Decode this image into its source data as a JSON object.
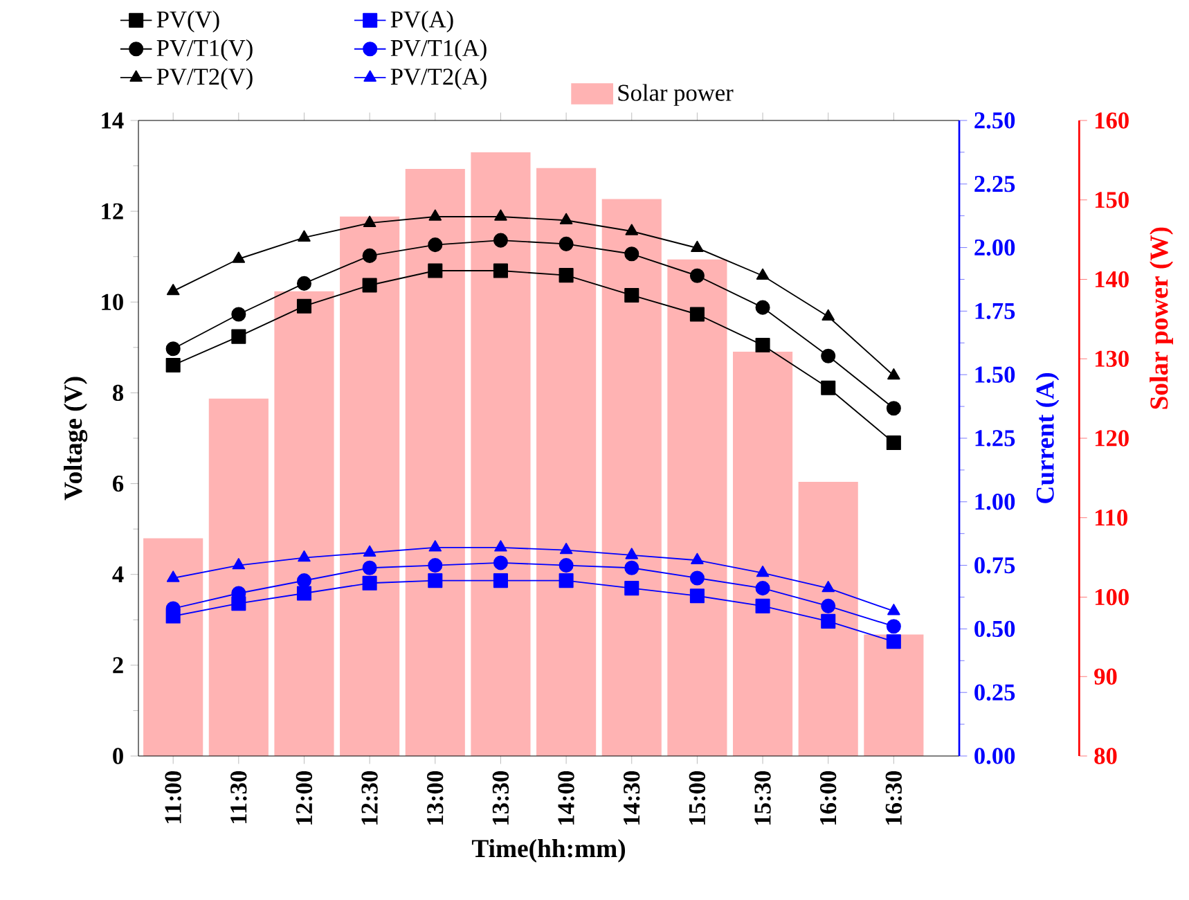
{
  "chart_data": {
    "type": "line",
    "xlabel": "Time(hh:mm)",
    "ylabel": "Voltage (V)",
    "y2label": "Current (A)",
    "y3label": "Solar power (W)",
    "categories": [
      "11:00",
      "11:30",
      "12:00",
      "12:30",
      "13:00",
      "13:30",
      "14:00",
      "14:30",
      "15:00",
      "15:30",
      "16:00",
      "16:30"
    ],
    "series": [
      {
        "name": "Solar power",
        "type": "bar",
        "axis": "y3",
        "color": "#ffb3b3",
        "values": [
          107.4,
          125.0,
          138.5,
          147.9,
          153.9,
          156.0,
          154.0,
          150.1,
          142.5,
          130.9,
          114.5,
          95.3
        ]
      },
      {
        "name": "PV(V)",
        "color": "#000000",
        "marker": "square",
        "values": [
          8.61,
          9.24,
          9.91,
          10.37,
          10.69,
          10.69,
          10.59,
          10.15,
          9.73,
          9.05,
          8.11,
          6.9
        ]
      },
      {
        "name": "PV/T1(V)",
        "color": "#000000",
        "marker": "circle",
        "values": [
          8.97,
          9.73,
          10.41,
          11.02,
          11.26,
          11.36,
          11.28,
          11.06,
          10.58,
          9.88,
          8.81,
          7.66
        ]
      },
      {
        "name": "PV/T2(V)",
        "color": "#000000",
        "marker": "triangle",
        "values": [
          10.24,
          10.95,
          11.42,
          11.74,
          11.88,
          11.88,
          11.8,
          11.56,
          11.19,
          10.58,
          9.68,
          8.38
        ]
      },
      {
        "name": "PV(A)",
        "color": "#0000ff",
        "marker": "square",
        "axis": "y2",
        "values": [
          0.55,
          0.6,
          0.64,
          0.68,
          0.69,
          0.69,
          0.69,
          0.66,
          0.63,
          0.59,
          0.53,
          0.45
        ]
      },
      {
        "name": "PV/T1(A)",
        "color": "#0000ff",
        "marker": "circle",
        "axis": "y2",
        "values": [
          0.58,
          0.64,
          0.69,
          0.74,
          0.75,
          0.76,
          0.75,
          0.74,
          0.7,
          0.66,
          0.59,
          0.51
        ]
      },
      {
        "name": "PV/T2(A)",
        "color": "#0000ff",
        "marker": "triangle",
        "axis": "y2",
        "values": [
          0.7,
          0.75,
          0.78,
          0.8,
          0.82,
          0.82,
          0.81,
          0.79,
          0.77,
          0.72,
          0.66,
          0.57
        ]
      }
    ],
    "ylim": [
      0,
      14
    ],
    "yticks": [
      0,
      2,
      4,
      6,
      8,
      10,
      12,
      14
    ],
    "y2lim": [
      0,
      2.5
    ],
    "y2ticks": [
      {
        "value": 0,
        "label": "0.00"
      },
      {
        "value": 0.25,
        "label": "0.25"
      },
      {
        "value": 0.5,
        "label": "0.50"
      },
      {
        "value": 0.75,
        "label": "0.75"
      },
      {
        "value": 1,
        "label": "1.00"
      },
      {
        "value": 1.25,
        "label": "1.25"
      },
      {
        "value": 1.5,
        "label": "1.50"
      },
      {
        "value": 1.75,
        "label": "1.75"
      },
      {
        "value": 2,
        "label": "2.00"
      },
      {
        "value": 2.25,
        "label": "2.25"
      },
      {
        "value": 2.5,
        "label": "2.50"
      }
    ],
    "y3lim": [
      80,
      160
    ],
    "y3ticks": [
      80,
      90,
      100,
      110,
      120,
      130,
      140,
      150,
      160
    ],
    "legend": "top"
  }
}
